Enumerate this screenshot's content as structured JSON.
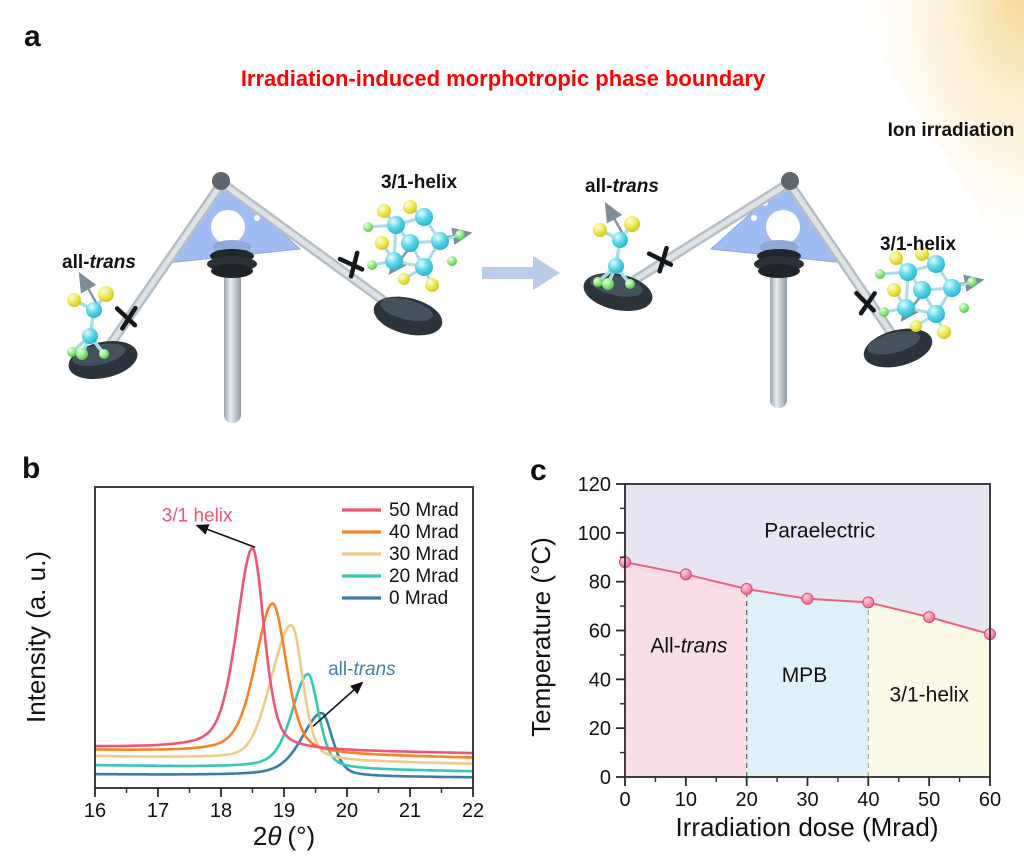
{
  "panels": {
    "a_label": "a",
    "b_label": "b",
    "c_label": "c"
  },
  "panel_a": {
    "title": "Irradiation-induced morphotropic phase boundary",
    "title_color": "#fe0000",
    "ion_irradiation_label": "Ion irradiation",
    "arrow_color": "#b8cce9",
    "seesaw_left": {
      "all_trans_prefix": "all-",
      "all_trans_italic": "trans",
      "helix_label": "3/1-helix"
    },
    "seesaw_right": {
      "all_trans_prefix": "all-",
      "all_trans_italic": "trans",
      "helix_label": "3/1-helix"
    }
  },
  "chart_data": [
    {
      "id": "xrd",
      "panel": "b",
      "type": "line",
      "xlabel_prefix": "2",
      "xlabel_theta": "θ",
      "xlabel_suffix": "(°)",
      "ylabel": "Intensity (a. u.)",
      "xlim": [
        16,
        22
      ],
      "x_major_ticks": [
        16,
        17,
        18,
        19,
        20,
        21,
        22
      ],
      "x_minor_step": 0.5,
      "y_axis": "arbitrary units, no ticks",
      "legend_position": "top-right inside",
      "series": [
        {
          "name": "50 Mrad",
          "color": "#ee5577",
          "peak_center": 18.5,
          "peak_height": 0.67,
          "width_left": 0.3,
          "width_right": 0.22,
          "baseline_left": 0.135,
          "baseline_right": 0.115
        },
        {
          "name": "40 Mrad",
          "color": "#f68426",
          "peak_center": 18.82,
          "peak_height": 0.5,
          "width_left": 0.33,
          "width_right": 0.26,
          "baseline_left": 0.125,
          "baseline_right": 0.1
        },
        {
          "name": "30 Mrad",
          "color": "#eecb87",
          "peak_center": 19.14,
          "peak_height": 0.41,
          "width_left": 0.3,
          "width_right": 0.2,
          "shoulder_center": 18.82,
          "shoulder_height": 0.1,
          "shoulder_width": 0.22,
          "baseline_left": 0.105,
          "baseline_right": 0.08
        },
        {
          "name": "20 Mrad",
          "color": "#35c7b2",
          "peak_center": 19.38,
          "peak_height": 0.315,
          "width_left": 0.3,
          "width_right": 0.2,
          "baseline_left": 0.075,
          "baseline_right": 0.055
        },
        {
          "name": "0 Mrad",
          "color": "#3a7ea8",
          "peak_center": 19.6,
          "peak_height": 0.21,
          "width_left": 0.38,
          "width_right": 0.2,
          "baseline_left": 0.045,
          "baseline_right": 0.035
        }
      ],
      "annotations": [
        {
          "text": "3/1 helix",
          "text_italic": "",
          "color": "#ee5577",
          "text_x": 17.06,
          "text_y": 0.885,
          "arrow_tail_x": 18.54,
          "arrow_tail_y": 0.8,
          "arrow_head_x": 17.62,
          "arrow_head_y": 0.872
        },
        {
          "text": "all-",
          "text_italic": "trans",
          "color": "#3f7fa8",
          "text_x": 19.7,
          "text_y": 0.375,
          "arrow_tail_x": 19.46,
          "arrow_tail_y": 0.205,
          "arrow_head_x": 20.24,
          "arrow_head_y": 0.35
        }
      ]
    },
    {
      "id": "phase_diagram",
      "panel": "c",
      "type": "line",
      "xlabel": "Irradiation dose (Mrad)",
      "ylabel": "Temperature (°C)",
      "xlim": [
        0,
        60
      ],
      "ylim": [
        0,
        120
      ],
      "x_major_ticks": [
        0,
        10,
        20,
        30,
        40,
        50,
        60
      ],
      "x_minor_step": 5,
      "y_major_ticks": [
        0,
        20,
        40,
        60,
        80,
        100,
        120
      ],
      "y_minor_step": 10,
      "x": [
        0,
        10,
        20,
        30,
        40,
        50,
        60
      ],
      "y": [
        88,
        83,
        77,
        73,
        71.5,
        65.5,
        58.5
      ],
      "line_color": "#ef5f7e",
      "marker_fill": "#f590ac",
      "marker_stroke": "#d94a6b",
      "phase_boundaries": [
        {
          "x": 20,
          "dash_color": "#6b6b6b"
        },
        {
          "x": 40,
          "dash_color": "#9ab4ae"
        }
      ],
      "regions": [
        {
          "name": "paraelectric",
          "label": "Paraelectric",
          "label_italic": "",
          "fill": "#e7e5f2",
          "label_x": 32,
          "label_y": 98
        },
        {
          "name": "all-trans",
          "label": "All-",
          "label_italic": "trans",
          "fill": "#f9dde7",
          "label_x": 10.5,
          "label_y": 51
        },
        {
          "name": "mpb",
          "label": "MPB",
          "label_italic": "",
          "fill": "#def0f8",
          "label_x": 29.5,
          "label_y": 39
        },
        {
          "name": "3-1-helix",
          "label": "3/1-helix",
          "label_italic": "",
          "fill": "#fbfae6",
          "label_x": 50,
          "label_y": 31
        }
      ]
    }
  ]
}
